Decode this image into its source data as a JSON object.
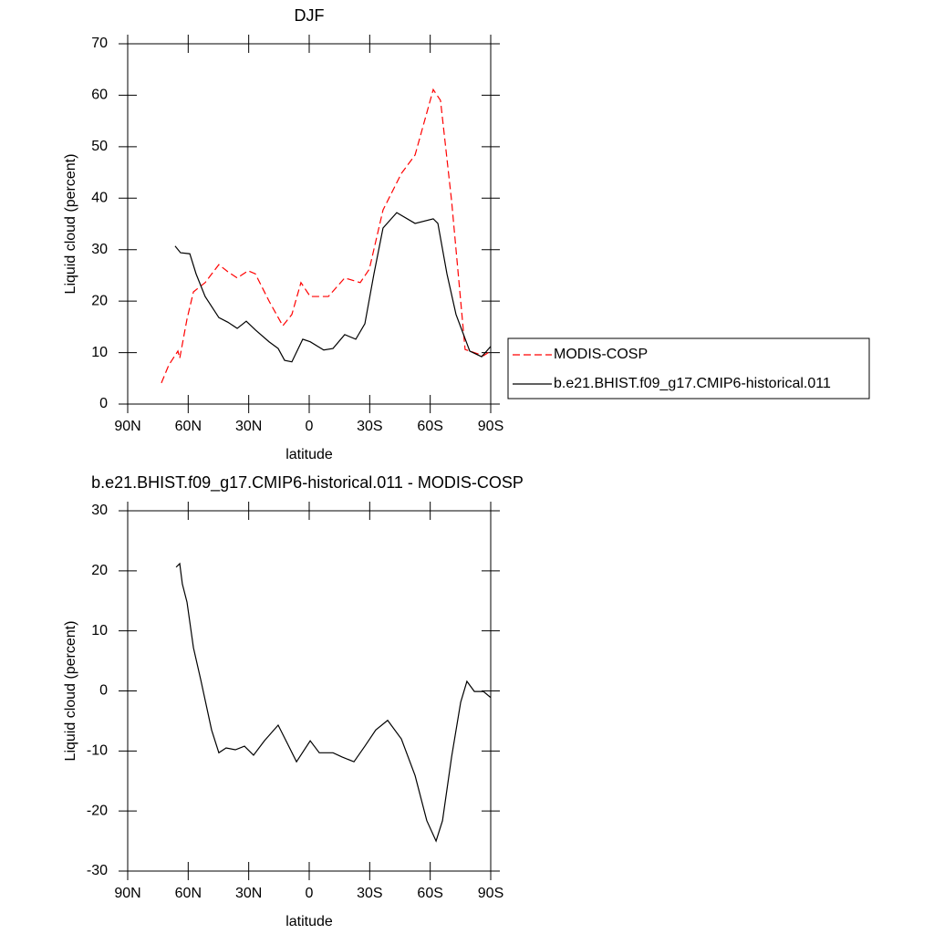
{
  "chart_data": [
    {
      "type": "line",
      "title": "DJF",
      "xlabel": "latitude",
      "ylabel": "Liquid cloud (percent)",
      "xlim": [
        90,
        -90
      ],
      "xticks": [
        {
          "value": 90,
          "label": "90N"
        },
        {
          "value": 60,
          "label": "60N"
        },
        {
          "value": 30,
          "label": "30N"
        },
        0,
        {
          "value": -30,
          "label": "30S"
        },
        {
          "value": -60,
          "label": "60S"
        },
        {
          "value": -90,
          "label": "90S"
        }
      ],
      "ylim": [
        0,
        70
      ],
      "yticks": [
        0,
        10,
        20,
        30,
        40,
        50,
        60,
        70
      ],
      "legend": "right",
      "series": [
        {
          "name": "MODIS-COSP",
          "color": "#ff0000",
          "style": "dashed",
          "x": [
            73.3,
            69.6,
            65.1,
            64.2,
            60.6,
            57.4,
            51.6,
            44.8,
            40.3,
            35.7,
            30.3,
            26.7,
            19.9,
            13.1,
            8.6,
            4.1,
            -0.5,
            -9.5,
            -17.6,
            -25.3,
            -29.8,
            -36.6,
            -45.7,
            -52.5,
            -61.5,
            -65.1,
            -70.6,
            -77.3,
            -86.4,
            -90
          ],
          "values": [
            4.1,
            7.6,
            10.3,
            8.9,
            16.5,
            21.8,
            23.6,
            27.1,
            25.7,
            24.5,
            25.9,
            25.3,
            20.0,
            15.2,
            17.4,
            23.6,
            20.9,
            20.9,
            24.5,
            23.6,
            26.2,
            37.7,
            44.8,
            48.4,
            61.1,
            59.0,
            39.5,
            10.6,
            9.4,
            10.3
          ]
        },
        {
          "name": "b.e21.BHIST.f09_g17.CMIP6-historical.011",
          "color": "#000000",
          "style": "solid",
          "x": [
            66.5,
            63.8,
            59.2,
            56.1,
            51.6,
            44.8,
            40.3,
            35.7,
            31.2,
            26.7,
            19.9,
            15.4,
            12.2,
            8.6,
            3.2,
            -0.5,
            -7.2,
            -11.8,
            -17.6,
            -23.1,
            -27.6,
            -32.1,
            -36.6,
            -43.4,
            -52.5,
            -61.5,
            -63.8,
            -68.3,
            -72.8,
            -79.6,
            -85.5,
            -90
          ],
          "values": [
            30.7,
            29.4,
            29.2,
            25.3,
            20.9,
            16.8,
            15.9,
            14.7,
            16.1,
            14.4,
            12.1,
            10.8,
            8.5,
            8.2,
            12.6,
            12.1,
            10.5,
            10.8,
            13.5,
            12.6,
            15.6,
            25.3,
            34.2,
            37.2,
            35.1,
            36.0,
            35.1,
            25.3,
            17.4,
            10.3,
            9.2,
            11.2
          ]
        }
      ]
    },
    {
      "type": "line",
      "title": "b.e21.BHIST.f09_g17.CMIP6-historical.011 - MODIS-COSP",
      "xlabel": "latitude",
      "ylabel": "Liquid cloud (percent)",
      "xlim": [
        90,
        -90
      ],
      "xticks": [
        {
          "value": 90,
          "label": "90N"
        },
        {
          "value": 60,
          "label": "60N"
        },
        {
          "value": 30,
          "label": "30N"
        },
        0,
        {
          "value": -30,
          "label": "30S"
        },
        {
          "value": -60,
          "label": "60S"
        },
        {
          "value": -90,
          "label": "90S"
        }
      ],
      "ylim": [
        -30,
        30
      ],
      "yticks": [
        -30,
        -20,
        -10,
        0,
        10,
        20,
        30
      ],
      "series": [
        {
          "color": "#000000",
          "style": "solid",
          "x": [
            66.0,
            64.2,
            62.9,
            60.6,
            57.4,
            53.8,
            48.4,
            44.8,
            41.2,
            36.6,
            32.1,
            27.6,
            22.2,
            15.4,
            10.9,
            6.3,
            -0.5,
            -5.0,
            -11.8,
            -16.3,
            -22.2,
            -27.6,
            -33.0,
            -38.9,
            -45.7,
            -52.5,
            -58.3,
            -62.9,
            -66.1,
            -70.6,
            -75.1,
            -78.2,
            -81.9,
            -86.4,
            -90
          ],
          "values": [
            20.6,
            21.2,
            17.8,
            14.8,
            7.2,
            1.9,
            -6.5,
            -10.3,
            -9.5,
            -9.8,
            -9.2,
            -10.7,
            -8.3,
            -5.7,
            -8.7,
            -11.8,
            -8.3,
            -10.3,
            -10.3,
            -11.0,
            -11.8,
            -9.2,
            -6.5,
            -4.9,
            -8.0,
            -14.1,
            -21.6,
            -25.0,
            -21.6,
            -11.0,
            -1.9,
            1.6,
            -0.1,
            -0.1,
            -1.1
          ]
        }
      ]
    }
  ]
}
